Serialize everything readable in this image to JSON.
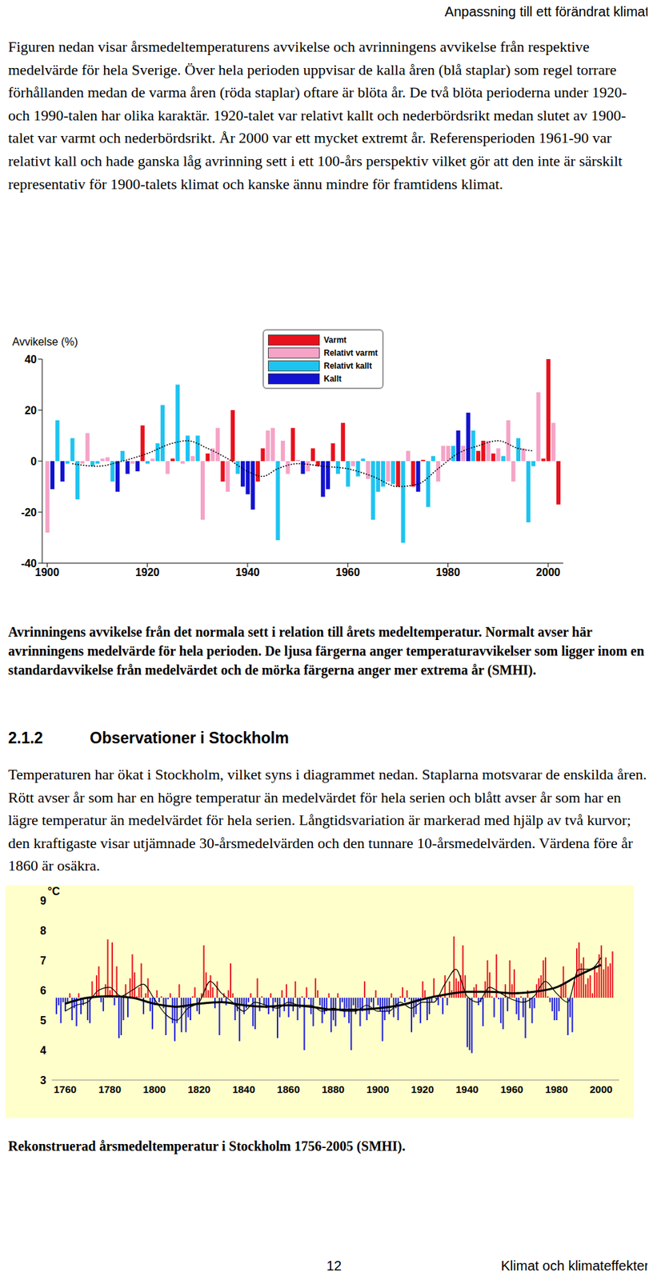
{
  "header": "Anpassning till ett förändrat klimat",
  "paragraph_1": "Figuren nedan visar årsmedeltemperaturens avvikelse och avrinningens avvikelse från respektive medelvärde för hela Sverige. Över hela perioden uppvisar de kalla åren (blå staplar) som regel torrare förhållanden medan de varma åren (röda staplar) oftare är blöta år. De två blöta perioderna under 1920- och 1990-talen har olika karaktär. 1920-talet var relativt kallt och nederbördsrikt medan slutet av 1900-talet var varmt och nederbördsrikt. År 2000 var ett mycket extremt år. Referensperioden 1961-90 var relativt kall och hade ganska låg avrinning sett i ett 100-års perspektiv vilket gör att den inte är särskilt representativ för 1900-talets klimat och kanske ännu mindre för framtidens klimat.",
  "chart_data": [
    {
      "type": "bar",
      "y_label": "Avvikelse (%)",
      "x": [
        1900,
        1901,
        1902,
        1903,
        1904,
        1905,
        1906,
        1907,
        1908,
        1909,
        1910,
        1911,
        1912,
        1913,
        1914,
        1915,
        1916,
        1917,
        1918,
        1919,
        1920,
        1921,
        1922,
        1923,
        1924,
        1925,
        1926,
        1927,
        1928,
        1929,
        1930,
        1931,
        1932,
        1933,
        1934,
        1935,
        1936,
        1937,
        1938,
        1939,
        1940,
        1941,
        1942,
        1943,
        1944,
        1945,
        1946,
        1947,
        1948,
        1949,
        1950,
        1951,
        1952,
        1953,
        1954,
        1955,
        1956,
        1957,
        1958,
        1959,
        1960,
        1961,
        1962,
        1963,
        1964,
        1965,
        1966,
        1967,
        1968,
        1969,
        1970,
        1971,
        1972,
        1973,
        1974,
        1975,
        1976,
        1977,
        1978,
        1979,
        1980,
        1981,
        1982,
        1983,
        1984,
        1985,
        1986,
        1987,
        1988,
        1989,
        1990,
        1991,
        1992,
        1993,
        1994,
        1995,
        1996,
        1997,
        1998,
        1999,
        2000,
        2001,
        2002
      ],
      "values": [
        -28,
        -11,
        16,
        -8,
        -1,
        9,
        -15,
        -1,
        11,
        -2,
        -1,
        1,
        1.5,
        -8,
        -12,
        4,
        -5,
        -1,
        -4,
        14,
        -1,
        1,
        7,
        22,
        -5,
        1,
        30,
        -1,
        10,
        2,
        10,
        -23,
        3,
        5,
        13,
        -8,
        -12,
        20,
        -5,
        -10,
        -13,
        -19,
        -8,
        5,
        12,
        13,
        -31,
        8,
        -5,
        13,
        0.5,
        -5,
        -4,
        5,
        -2,
        -14,
        -11,
        7,
        -5,
        15,
        -10,
        -2,
        -6,
        1,
        -7,
        -23,
        -12,
        -10,
        -8,
        -9,
        -10,
        -32,
        4,
        -10,
        -12,
        0.5,
        -18,
        2,
        -8,
        6,
        6,
        6,
        12,
        6,
        19,
        12,
        4,
        8,
        8,
        3,
        5,
        2,
        16,
        -8,
        9,
        5,
        -24,
        -2,
        27,
        1,
        40,
        15,
        -17
      ],
      "colors": [
        "#f5a3c7",
        "#1212d0",
        "#1ec3f0",
        "#1212d0",
        "#1ec3f0",
        "#1ec3f0",
        "#1ec3f0",
        "#f5a3c7",
        "#f5a3c7",
        "#1ec3f0",
        "#1ec3f0",
        "#f5a3c7",
        "#f5a3c7",
        "#1ec3f0",
        "#1212d0",
        "#1ec3f0",
        "#1212d0",
        "#f5a3c7",
        "#1212d0",
        "#e8101c",
        "#1ec3f0",
        "#f5a3c7",
        "#1ec3f0",
        "#1ec3f0",
        "#f5a3c7",
        "#e8101c",
        "#1ec3f0",
        "#f5a3c7",
        "#1ec3f0",
        "#f5a3c7",
        "#1ec3f0",
        "#f5a3c7",
        "#e8101c",
        "#f5a3c7",
        "#f5a3c7",
        "#e8101c",
        "#f5a3c7",
        "#e8101c",
        "#1ec3f0",
        "#1212d0",
        "#1212d0",
        "#1212d0",
        "#e8101c",
        "#e8101c",
        "#f5a3c7",
        "#f5a3c7",
        "#1ec3f0",
        "#f5a3c7",
        "#f5a3c7",
        "#e8101c",
        "#f5a3c7",
        "#1212d0",
        "#f5a3c7",
        "#e8101c",
        "#e8101c",
        "#1212d0",
        "#1212d0",
        "#e8101c",
        "#1ec3f0",
        "#e8101c",
        "#1ec3f0",
        "#f5a3c7",
        "#1ec3f0",
        "#1ec3f0",
        "#f5a3c7",
        "#1ec3f0",
        "#1ec3f0",
        "#1ec3f0",
        "#f5a3c7",
        "#1ec3f0",
        "#e8101c",
        "#1ec3f0",
        "#f5a3c7",
        "#e8101c",
        "#1212d0",
        "#e8101c",
        "#1ec3f0",
        "#1ec3f0",
        "#f5a3c7",
        "#f5a3c7",
        "#f5a3c7",
        "#1ec3f0",
        "#1212d0",
        "#f5a3c7",
        "#1212d0",
        "#1ec3f0",
        "#e8101c",
        "#e8101c",
        "#f5a3c7",
        "#e8101c",
        "#f5a3c7",
        "#1ec3f0",
        "#f5a3c7",
        "#f5a3c7",
        "#1ec3f0",
        "#f5a3c7",
        "#1ec3f0",
        "#1ec3f0",
        "#f5a3c7",
        "#e8101c",
        "#e8101c",
        "#f5a3c7",
        "#e8101c"
      ],
      "legend_entries": [
        {
          "name": "Varmt",
          "color": "#e8101c"
        },
        {
          "name": "Relativt varmt",
          "color": "#f5a3c7"
        },
        {
          "name": "Relativt kallt",
          "color": "#1ec3f0"
        },
        {
          "name": "Kallt",
          "color": "#1212d0"
        }
      ],
      "legend": "top",
      "trend": {
        "type": "line",
        "x": [
          1905,
          1910,
          1915,
          1920,
          1925,
          1928,
          1932,
          1936,
          1940,
          1943,
          1946,
          1950,
          1955,
          1960,
          1965,
          1970,
          1974,
          1978,
          1982,
          1986,
          1990,
          1994,
          1997
        ],
        "values": [
          -1,
          -2,
          0,
          3,
          7,
          8,
          5,
          1,
          -4,
          -6,
          -3,
          -1,
          -2,
          -3,
          -6,
          -10,
          -9,
          -3,
          3,
          6,
          8,
          5,
          4
        ],
        "color": "#000000",
        "line_style": "dotted"
      },
      "xlim": [
        1899,
        2003
      ],
      "xticks": [
        1900,
        1920,
        1940,
        1960,
        1980,
        2000
      ],
      "ylim": [
        -40,
        40
      ],
      "yticks": [
        -40,
        -20,
        0,
        20,
        40
      ],
      "grid": false
    },
    {
      "type": "bar",
      "y_label": "°C",
      "x": [
        1756,
        1757,
        1758,
        1759,
        1760,
        1761,
        1762,
        1763,
        1764,
        1765,
        1766,
        1767,
        1768,
        1769,
        1770,
        1771,
        1772,
        1773,
        1774,
        1775,
        1776,
        1777,
        1778,
        1779,
        1780,
        1781,
        1782,
        1783,
        1784,
        1785,
        1786,
        1787,
        1788,
        1789,
        1790,
        1791,
        1792,
        1793,
        1794,
        1795,
        1796,
        1797,
        1798,
        1799,
        1800,
        1801,
        1802,
        1803,
        1804,
        1805,
        1806,
        1807,
        1808,
        1809,
        1810,
        1811,
        1812,
        1813,
        1814,
        1815,
        1816,
        1817,
        1818,
        1819,
        1820,
        1821,
        1822,
        1823,
        1824,
        1825,
        1826,
        1827,
        1828,
        1829,
        1830,
        1831,
        1832,
        1833,
        1834,
        1835,
        1836,
        1837,
        1838,
        1839,
        1840,
        1841,
        1842,
        1843,
        1844,
        1845,
        1846,
        1847,
        1848,
        1849,
        1850,
        1851,
        1852,
        1853,
        1854,
        1855,
        1856,
        1857,
        1858,
        1859,
        1860,
        1861,
        1862,
        1863,
        1864,
        1865,
        1866,
        1867,
        1868,
        1869,
        1870,
        1871,
        1872,
        1873,
        1874,
        1875,
        1876,
        1877,
        1878,
        1879,
        1880,
        1881,
        1882,
        1883,
        1884,
        1885,
        1886,
        1887,
        1888,
        1889,
        1890,
        1891,
        1892,
        1893,
        1894,
        1895,
        1896,
        1897,
        1898,
        1899,
        1900,
        1901,
        1902,
        1903,
        1904,
        1905,
        1906,
        1907,
        1908,
        1909,
        1910,
        1911,
        1912,
        1913,
        1914,
        1915,
        1916,
        1917,
        1918,
        1919,
        1920,
        1921,
        1922,
        1923,
        1924,
        1925,
        1926,
        1927,
        1928,
        1929,
        1930,
        1931,
        1932,
        1933,
        1934,
        1935,
        1936,
        1937,
        1938,
        1939,
        1940,
        1941,
        1942,
        1943,
        1944,
        1945,
        1946,
        1947,
        1948,
        1949,
        1950,
        1951,
        1952,
        1953,
        1954,
        1955,
        1956,
        1957,
        1958,
        1959,
        1960,
        1961,
        1962,
        1963,
        1964,
        1965,
        1966,
        1967,
        1968,
        1969,
        1970,
        1971,
        1972,
        1973,
        1974,
        1975,
        1976,
        1977,
        1978,
        1979,
        1980,
        1981,
        1982,
        1983,
        1984,
        1985,
        1986,
        1987,
        1988,
        1989,
        1990,
        1991,
        1992,
        1993,
        1994,
        1995,
        1996,
        1997,
        1998,
        1999,
        2000,
        2001,
        2002,
        2003,
        2004,
        2005
      ],
      "values": [
        5.2,
        5.5,
        4.9,
        5.6,
        5.3,
        5.6,
        5.9,
        5.0,
        5.4,
        4.8,
        5.9,
        5.2,
        5.5,
        5.7,
        5.0,
        4.9,
        6.3,
        5.8,
        6.5,
        6.8,
        5.6,
        5.3,
        6.2,
        7.7,
        6.0,
        7.6,
        5.5,
        6.8,
        4.4,
        4.5,
        5.0,
        6.2,
        5.1,
        6.4,
        7.2,
        6.6,
        5.8,
        6.1,
        6.9,
        5.2,
        5.9,
        6.4,
        5.3,
        4.7,
        5.5,
        6.0,
        5.6,
        5.8,
        5.4,
        4.5,
        5.7,
        5.9,
        4.9,
        4.3,
        4.9,
        6.2,
        4.6,
        5.4,
        4.6,
        5.1,
        5.0,
        5.8,
        6.1,
        5.3,
        5.2,
        5.9,
        7.5,
        6.6,
        6.0,
        6.5,
        6.1,
        5.4,
        6.3,
        4.5,
        5.6,
        5.9,
        5.5,
        6.0,
        6.9,
        5.9,
        5.0,
        5.3,
        4.3,
        5.5,
        5.2,
        5.4,
        5.6,
        5.9,
        4.8,
        4.7,
        6.4,
        5.3,
        5.8,
        5.5,
        5.4,
        5.2,
        5.9,
        5.3,
        5.6,
        4.4,
        5.1,
        6.0,
        5.3,
        6.2,
        5.1,
        5.5,
        5.3,
        6.3,
        5.0,
        5.4,
        5.8,
        4.0,
        6.1,
        5.7,
        5.2,
        4.8,
        6.4,
        6.0,
        5.5,
        4.9,
        5.2,
        5.3,
        5.9,
        4.6,
        5.0,
        4.8,
        5.9,
        5.3,
        5.6,
        5.1,
        5.4,
        4.9,
        4.0,
        5.5,
        5.2,
        5.4,
        4.8,
        5.3,
        6.3,
        5.0,
        5.2,
        5.6,
        5.4,
        6.0,
        5.5,
        5.3,
        4.3,
        5.0,
        5.3,
        5.2,
        5.9,
        5.1,
        5.4,
        5.0,
        5.8,
        6.1,
        5.6,
        6.0,
        5.7,
        4.6,
        5.1,
        5.2,
        5.6,
        4.9,
        6.3,
        6.0,
        5.0,
        5.2,
        5.6,
        6.4,
        5.7,
        5.5,
        5.8,
        5.2,
        6.5,
        5.5,
        6.3,
        6.0,
        7.8,
        6.4,
        6.3,
        6.5,
        7.5,
        6.5,
        4.1,
        4.0,
        3.9,
        6.1,
        6.2,
        5.5,
        5.6,
        4.8,
        6.3,
        7.0,
        6.6,
        5.8,
        5.1,
        7.2,
        5.7,
        4.9,
        4.7,
        6.2,
        5.3,
        7.0,
        6.2,
        6.7,
        5.2,
        5.0,
        5.8,
        5.1,
        4.4,
        6.0,
        5.4,
        4.9,
        5.4,
        6.2,
        6.4,
        6.5,
        7.0,
        7.1,
        5.8,
        5.6,
        5.3,
        5.0,
        5.0,
        5.3,
        6.2,
        6.8,
        6.3,
        4.5,
        5.1,
        4.6,
        6.3,
        7.4,
        7.6,
        6.9,
        7.1,
        6.2,
        6.4,
        6.5,
        5.9,
        6.8,
        6.6,
        7.2,
        7.5,
        6.7,
        7.1,
        6.8,
        6.9,
        7.3
      ],
      "baseline": 5.75,
      "color_above": "#e8141e",
      "color_below": "#1c1cd8",
      "background": "#ffffcc",
      "trend_30": {
        "type": "line",
        "x": [
          1760,
          1770,
          1780,
          1790,
          1800,
          1810,
          1820,
          1830,
          1840,
          1850,
          1860,
          1870,
          1880,
          1890,
          1900,
          1910,
          1920,
          1930,
          1940,
          1950,
          1960,
          1970,
          1980,
          1990,
          2000
        ],
        "values": [
          5.55,
          5.75,
          5.8,
          5.75,
          5.55,
          5.45,
          5.55,
          5.6,
          5.5,
          5.45,
          5.5,
          5.45,
          5.35,
          5.35,
          5.4,
          5.5,
          5.7,
          5.85,
          5.95,
          5.95,
          5.9,
          5.95,
          6.1,
          6.5,
          6.85
        ],
        "color": "#000000",
        "line_style": "solid"
      },
      "trend_10": {
        "type": "line",
        "x": [
          1760,
          1765,
          1770,
          1775,
          1780,
          1785,
          1790,
          1795,
          1800,
          1805,
          1810,
          1815,
          1820,
          1825,
          1830,
          1835,
          1840,
          1845,
          1850,
          1855,
          1860,
          1865,
          1870,
          1875,
          1880,
          1885,
          1890,
          1895,
          1900,
          1905,
          1910,
          1915,
          1920,
          1925,
          1930,
          1935,
          1940,
          1945,
          1950,
          1955,
          1960,
          1965,
          1970,
          1975,
          1980,
          1985,
          1990,
          1995,
          2000
        ],
        "values": [
          5.3,
          5.5,
          5.6,
          6.0,
          6.1,
          5.8,
          6.0,
          6.2,
          5.7,
          5.2,
          5.0,
          5.4,
          5.6,
          6.3,
          5.9,
          5.6,
          5.3,
          5.6,
          5.5,
          5.4,
          5.6,
          5.5,
          5.5,
          5.3,
          5.4,
          5.3,
          5.3,
          5.5,
          5.3,
          5.3,
          5.6,
          5.4,
          5.6,
          5.6,
          6.2,
          6.7,
          5.8,
          5.6,
          6.1,
          5.9,
          5.7,
          5.6,
          5.8,
          6.3,
          5.9,
          5.6,
          6.7,
          6.7,
          7.1
        ],
        "color": "#000000",
        "line_style": "solid"
      },
      "xlim": [
        1754,
        2008
      ],
      "xticks": [
        1760,
        1780,
        1800,
        1820,
        1840,
        1860,
        1880,
        1900,
        1920,
        1940,
        1960,
        1980,
        2000
      ],
      "ylim": [
        3,
        9
      ],
      "yticks": [
        3,
        4,
        5,
        6,
        7,
        8,
        9
      ],
      "grid": false
    }
  ],
  "caption_1": "Avrinningens avvikelse från det normala sett i relation till årets medeltemperatur. Normalt avser här avrinningens medelvärde för hela perioden. De ljusa färgerna anger temperaturavvikelser som ligger inom en standardavvikelse från medelvärdet och de mörka färgerna anger mer extrema år (SMHI).",
  "section": {
    "number": "2.1.2",
    "title": "Observationer i Stockholm"
  },
  "paragraph_2": "Temperaturen har ökat i Stockholm, vilket syns i diagrammet nedan. Staplarna motsvarar de enskilda åren. Rött avser år som har en högre temperatur än medelvärdet för hela serien och blått avser år som har en lägre temperatur än medelvärdet för hela serien. Långtidsvariation är markerad med hjälp av två kurvor; den kraftigaste visar utjämnade 30-årsmedelvärden och den tunnare 10-årsmedelvärden. Värdena före år 1860 är osäkra.",
  "caption_2": "Rekonstruerad årsmedeltemperatur i Stockholm 1756-2005 (SMHI).",
  "footer": {
    "page": "12",
    "title": "Klimat och klimateffekter"
  }
}
